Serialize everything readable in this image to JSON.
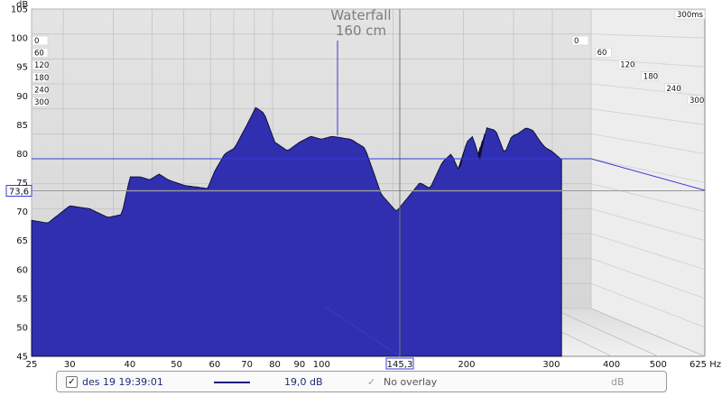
{
  "chart_data": {
    "type": "waterfall",
    "title": "Waterfall",
    "subtitle": "160 cm",
    "ylabel": "dB",
    "y_ticks": [
      "45",
      "50",
      "55",
      "60",
      "65",
      "70",
      "75",
      "80",
      "85",
      "90",
      "95",
      "100",
      "105"
    ],
    "ylim": [
      45,
      105
    ],
    "x_ticks": [
      "25",
      "30",
      "40",
      "50",
      "60",
      "70",
      "80",
      "90",
      "100",
      "200",
      "300",
      "400",
      "500",
      "625 Hz"
    ],
    "x_tick_values": [
      25,
      30,
      40,
      50,
      60,
      70,
      80,
      90,
      100,
      200,
      300,
      400,
      500,
      625
    ],
    "xlim": [
      25,
      625
    ],
    "x_scale": "log",
    "z_label": "300ms",
    "time_slices_ms": [
      "0",
      "60",
      "120",
      "180",
      "240",
      "300"
    ],
    "cursor_freq": "145,3",
    "cursor_level": "73,6",
    "series_color": "#2f2fb0",
    "front_slice_db": [
      {
        "f": 25,
        "db": 68.5
      },
      {
        "f": 27,
        "db": 68
      },
      {
        "f": 30,
        "db": 71
      },
      {
        "f": 33,
        "db": 70.5
      },
      {
        "f": 36,
        "db": 69
      },
      {
        "f": 38.5,
        "db": 69.5
      },
      {
        "f": 40,
        "db": 76
      },
      {
        "f": 42,
        "db": 76
      },
      {
        "f": 44,
        "db": 75.5
      },
      {
        "f": 46,
        "db": 76.5
      },
      {
        "f": 48,
        "db": 75.5
      },
      {
        "f": 52,
        "db": 74.5
      },
      {
        "f": 58,
        "db": 74
      },
      {
        "f": 60,
        "db": 77
      },
      {
        "f": 63,
        "db": 80
      },
      {
        "f": 66,
        "db": 81
      },
      {
        "f": 70,
        "db": 85
      },
      {
        "f": 73,
        "db": 88
      },
      {
        "f": 76,
        "db": 87
      },
      {
        "f": 80,
        "db": 82
      },
      {
        "f": 85,
        "db": 80.5
      },
      {
        "f": 90,
        "db": 82
      },
      {
        "f": 95,
        "db": 83
      },
      {
        "f": 100,
        "db": 82.5
      },
      {
        "f": 105,
        "db": 83
      },
      {
        "f": 115,
        "db": 82.5
      },
      {
        "f": 123,
        "db": 81
      },
      {
        "f": 128,
        "db": 77
      },
      {
        "f": 133,
        "db": 73
      },
      {
        "f": 143,
        "db": 70
      },
      {
        "f": 153,
        "db": 73
      },
      {
        "f": 160,
        "db": 75
      },
      {
        "f": 168,
        "db": 74
      },
      {
        "f": 178,
        "db": 78.5
      },
      {
        "f": 186,
        "db": 80
      },
      {
        "f": 193,
        "db": 77
      },
      {
        "f": 200,
        "db": 82
      },
      {
        "f": 206,
        "db": 83
      },
      {
        "f": 213,
        "db": 79
      },
      {
        "f": 220,
        "db": 84.5
      },
      {
        "f": 230,
        "db": 84
      },
      {
        "f": 240,
        "db": 80
      },
      {
        "f": 248,
        "db": 83
      },
      {
        "f": 256,
        "db": 83.5
      },
      {
        "f": 266,
        "db": 84.5
      },
      {
        "f": 275,
        "db": 84
      },
      {
        "f": 285,
        "db": 82
      },
      {
        "f": 292,
        "db": 81
      },
      {
        "f": 300,
        "db": 80.5
      },
      {
        "f": 315,
        "db": 79
      }
    ]
  },
  "legend": {
    "date": "des 19 19:39:01",
    "offset": "19,0 dB",
    "overlay": "No overlay",
    "unit": "dB",
    "check_mark": "✓"
  }
}
